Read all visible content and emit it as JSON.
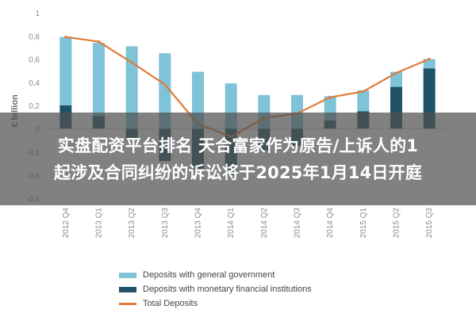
{
  "chart_data": {
    "type": "bar",
    "ylabel": "€ billion",
    "ylim": [
      -0.6,
      1.0
    ],
    "yticks": [
      "1",
      "0,8",
      "0,6",
      "0,4",
      "0,2",
      "0",
      "-0,2",
      "-0,4",
      "-0,6"
    ],
    "ytick_values": [
      1.0,
      0.8,
      0.6,
      0.4,
      0.2,
      0.0,
      -0.2,
      -0.4,
      -0.6
    ],
    "categories": [
      "2012 Q4",
      "2013 Q1",
      "2013 Q2",
      "2013 Q3",
      "2013 Q4",
      "2014 Q1",
      "2014 Q2",
      "2014 Q3",
      "2014 Q4",
      "2015 Q1",
      "2015 Q2",
      "2015 Q3"
    ],
    "series": [
      {
        "name": "Deposits with general government",
        "kind": "bar",
        "color": "#7ec3d8",
        "values": [
          0.59,
          0.63,
          0.71,
          0.65,
          0.49,
          0.39,
          0.29,
          0.29,
          0.21,
          0.18,
          0.13,
          0.08
        ]
      },
      {
        "name": "Deposits with monetary financial institutions",
        "kind": "bar",
        "color": "#1f5266",
        "values": [
          0.2,
          0.11,
          -0.1,
          -0.28,
          -0.35,
          -0.4,
          -0.19,
          -0.15,
          0.07,
          0.15,
          0.36,
          0.52
        ]
      },
      {
        "name": "Total Deposits",
        "kind": "line",
        "color": "#e07b39",
        "values": [
          0.79,
          0.75,
          0.57,
          0.38,
          0.04,
          -0.07,
          0.09,
          0.13,
          0.27,
          0.32,
          0.48,
          0.6
        ]
      }
    ],
    "legend_position": "bottom",
    "grid": false
  },
  "banner": {
    "line1": "实盘配资平台排名  天合富家作为原告/上诉人的1",
    "line2": "起涉及合同纠纷的诉讼将于2025年1月14日开庭"
  }
}
